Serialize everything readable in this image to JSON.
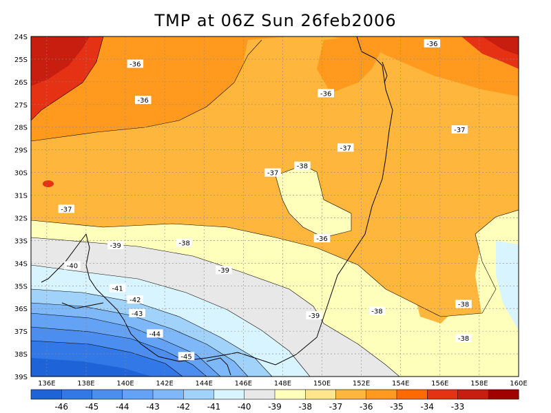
{
  "title": "TMP at 06Z Sun 26feb2006",
  "map": {
    "lat_ticks": [
      "24S",
      "25S",
      "26S",
      "27S",
      "28S",
      "29S",
      "30S",
      "31S",
      "32S",
      "33S",
      "34S",
      "35S",
      "36S",
      "37S",
      "38S",
      "39S"
    ],
    "lon_ticks": [
      "136E",
      "138E",
      "140E",
      "142E",
      "144E",
      "146E",
      "148E",
      "150E",
      "152E",
      "154E",
      "156E",
      "158E",
      "160E"
    ],
    "lat_range": [
      -39,
      -24
    ],
    "lon_range": [
      135.2,
      160
    ],
    "gridlines": true
  },
  "contour_labels": [
    {
      "text": "-36",
      "lon": 140.5,
      "lat": -25.2
    },
    {
      "text": "-36",
      "lon": 140.9,
      "lat": -26.8
    },
    {
      "text": "-36",
      "lon": 150.2,
      "lat": -26.5
    },
    {
      "text": "-36",
      "lon": 155.6,
      "lat": -24.3
    },
    {
      "text": "-37",
      "lon": 157.0,
      "lat": -28.1
    },
    {
      "text": "-37",
      "lon": 151.2,
      "lat": -28.9
    },
    {
      "text": "-37",
      "lon": 147.5,
      "lat": -30.0
    },
    {
      "text": "-38",
      "lon": 149.0,
      "lat": -29.7
    },
    {
      "text": "-37",
      "lon": 137.0,
      "lat": -31.6
    },
    {
      "text": "-39",
      "lon": 139.5,
      "lat": -33.2
    },
    {
      "text": "-38",
      "lon": 143.0,
      "lat": -33.1
    },
    {
      "text": "-36",
      "lon": 150.0,
      "lat": -32.9
    },
    {
      "text": "-40",
      "lon": 137.3,
      "lat": -34.1
    },
    {
      "text": "-39",
      "lon": 145.0,
      "lat": -34.3
    },
    {
      "text": "-41",
      "lon": 139.6,
      "lat": -35.1
    },
    {
      "text": "-42",
      "lon": 140.5,
      "lat": -35.6
    },
    {
      "text": "-43",
      "lon": 140.6,
      "lat": -36.2
    },
    {
      "text": "-39",
      "lon": 149.6,
      "lat": -36.3
    },
    {
      "text": "-38",
      "lon": 152.8,
      "lat": -36.1
    },
    {
      "text": "-38",
      "lon": 157.2,
      "lat": -35.8
    },
    {
      "text": "-44",
      "lon": 141.5,
      "lat": -37.1
    },
    {
      "text": "-38",
      "lon": 157.2,
      "lat": -37.3
    },
    {
      "text": "-45",
      "lon": 143.1,
      "lat": -38.1
    }
  ],
  "colorbar": {
    "labels": [
      "-46",
      "-45",
      "-44",
      "-43",
      "-42",
      "-41",
      "-40",
      "-39",
      "-38",
      "-37",
      "-36",
      "-35",
      "-34",
      "-33"
    ],
    "colors": [
      "#1e64d8",
      "#3278e6",
      "#4b8ef0",
      "#64a2f5",
      "#7fb8f8",
      "#a0d2fa",
      "#d8f4ff",
      "#e8e8e8",
      "#ffffbc",
      "#ffe68c",
      "#ffb63c",
      "#ff9a1e",
      "#ff6a00",
      "#e63214",
      "#c81e10",
      "#a00000"
    ]
  }
}
